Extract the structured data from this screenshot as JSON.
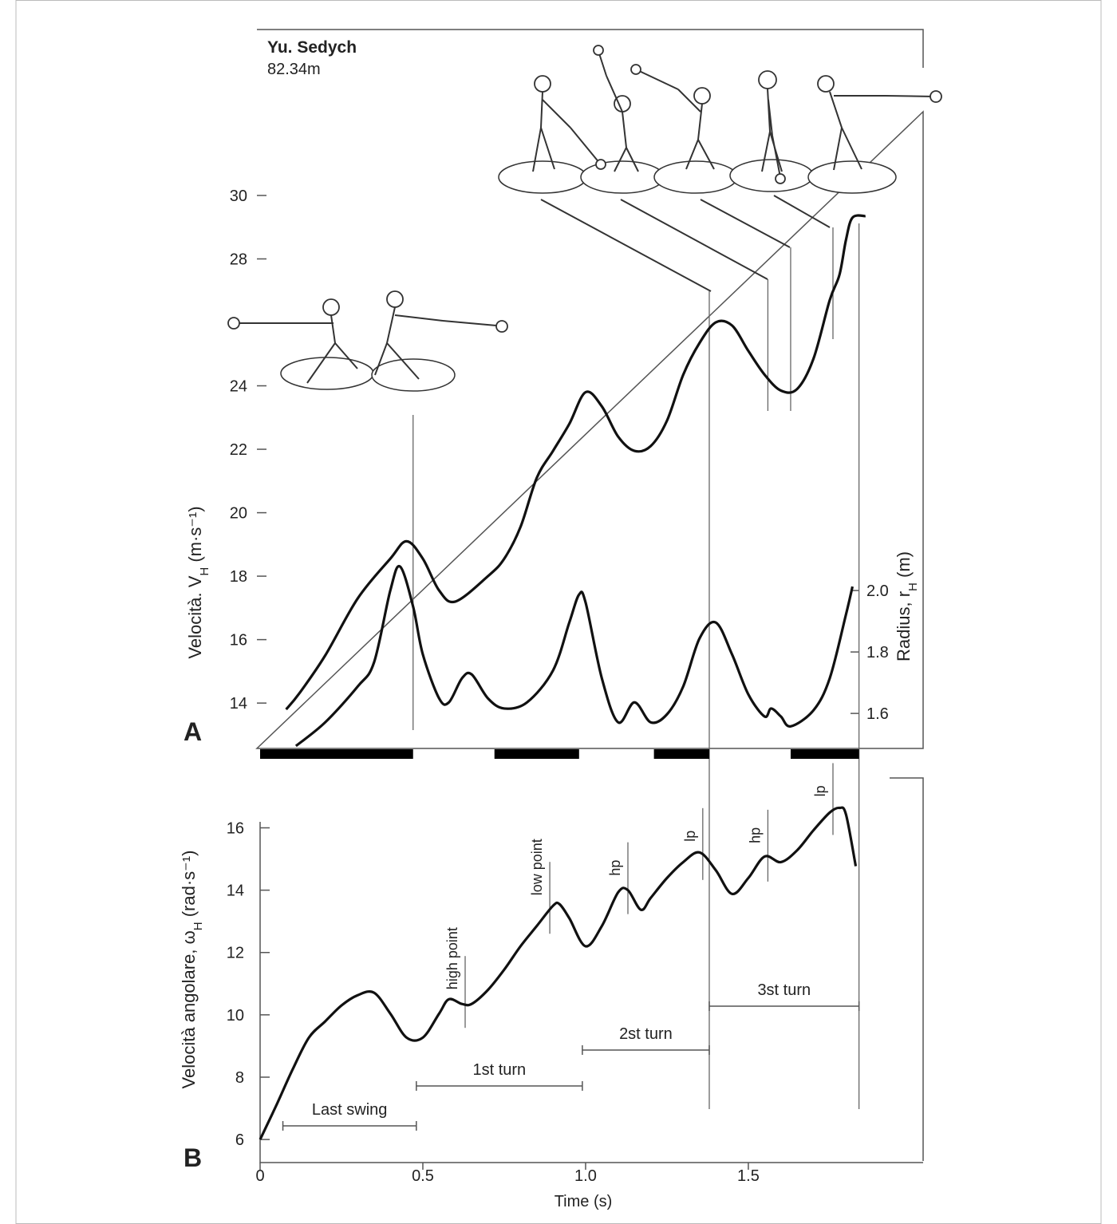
{
  "chart_data": [
    {
      "type": "line",
      "label": "A",
      "title": "Yu. Sedych",
      "subtitle": "82.34m",
      "ylabel": {
        "text": "Velocità. V",
        "sub": "H",
        "unit": " (m·s⁻¹)"
      },
      "y2label": {
        "text": "Radius, r",
        "sub": "H",
        "unit": " (m)"
      },
      "xlim": [
        0,
        2.037
      ],
      "ylim": [
        12.57,
        35.23
      ],
      "yticks": [
        14,
        16,
        18,
        20,
        22,
        24,
        28,
        30
      ],
      "y2lim": [
        1.486,
        3.826
      ],
      "y2ticks": [
        1.6,
        1.8,
        {
          "value": 2.0,
          "label": "2.0"
        }
      ],
      "series": [
        {
          "color": "#111",
          "x": [
            0.08,
            0.12,
            0.2,
            0.3,
            0.4,
            0.45,
            0.5,
            0.55,
            0.6,
            0.7,
            0.75,
            0.8,
            0.85,
            0.9,
            0.95,
            1.0,
            1.05,
            1.1,
            1.15,
            1.2,
            1.25,
            1.3,
            1.35,
            1.4,
            1.45,
            1.5,
            1.55,
            1.6,
            1.65,
            1.7,
            1.75,
            1.78,
            1.8,
            1.82,
            1.86
          ],
          "values": [
            13.8,
            14.3,
            15.5,
            17.3,
            18.55,
            19.1,
            18.55,
            17.55,
            17.2,
            18.0,
            18.55,
            19.55,
            21.1,
            21.95,
            22.8,
            23.8,
            23.35,
            22.4,
            21.95,
            22.1,
            22.9,
            24.35,
            25.35,
            26.0,
            25.9,
            25.1,
            24.35,
            23.85,
            23.9,
            24.85,
            26.7,
            27.5,
            28.6,
            29.3,
            29.35
          ]
        },
        {
          "color": "#111",
          "axis": "y2",
          "x": [
            0.11,
            0.2,
            0.3,
            0.35,
            0.4,
            0.43,
            0.47,
            0.5,
            0.55,
            0.58,
            0.62,
            0.65,
            0.7,
            0.75,
            0.82,
            0.9,
            0.95,
            0.98,
            1.0,
            1.05,
            1.1,
            1.15,
            1.2,
            1.25,
            1.3,
            1.35,
            1.4,
            1.45,
            1.5,
            1.55,
            1.57,
            1.6,
            1.63,
            1.7,
            1.75,
            1.8,
            1.82
          ],
          "values": [
            1.494,
            1.571,
            1.688,
            1.766,
            2.0,
            2.078,
            1.948,
            1.792,
            1.649,
            1.636,
            1.714,
            1.727,
            1.649,
            1.616,
            1.636,
            1.74,
            1.896,
            1.987,
            1.961,
            1.714,
            1.571,
            1.636,
            1.571,
            1.597,
            1.688,
            1.844,
            1.896,
            1.792,
            1.662,
            1.59,
            1.616,
            1.59,
            1.558,
            1.61,
            1.714,
            1.922,
            2.013
          ]
        }
      ],
      "event_lines": [
        0.47,
        1.38,
        1.56,
        1.63,
        1.76,
        1.84
      ],
      "support_phases": [
        [
          0,
          0.47
        ],
        [
          0.72,
          0.98
        ],
        [
          1.21,
          1.38
        ],
        [
          1.63,
          1.84
        ]
      ]
    },
    {
      "type": "line",
      "label": "B",
      "ylabel": {
        "text": "Velocità angolare, ω",
        "sub": "H",
        "unit": " (rad·s⁻¹)"
      },
      "xlabel": "Time (s)",
      "xlim": [
        0,
        2.037
      ],
      "xticks": [
        0,
        0.5,
        {
          "value": 1.0,
          "label": "1.0"
        },
        1.5
      ],
      "ylim": [
        5.26,
        17.6
      ],
      "yticks": [
        6,
        8,
        10,
        12,
        14,
        16
      ],
      "series": [
        {
          "color": "#111",
          "x": [
            0.0,
            0.05,
            0.1,
            0.15,
            0.2,
            0.25,
            0.3,
            0.35,
            0.4,
            0.45,
            0.5,
            0.55,
            0.58,
            0.62,
            0.65,
            0.7,
            0.75,
            0.8,
            0.85,
            0.9,
            0.92,
            0.95,
            1.0,
            1.05,
            1.1,
            1.13,
            1.17,
            1.2,
            1.25,
            1.3,
            1.35,
            1.4,
            1.45,
            1.5,
            1.55,
            1.6,
            1.65,
            1.7,
            1.75,
            1.78,
            1.8,
            1.83
          ],
          "values": [
            6.0,
            7.1,
            8.25,
            9.27,
            9.79,
            10.3,
            10.63,
            10.71,
            10.04,
            9.27,
            9.27,
            10.04,
            10.5,
            10.35,
            10.35,
            10.8,
            11.45,
            12.2,
            12.85,
            13.5,
            13.55,
            13.1,
            12.2,
            12.85,
            13.93,
            14.0,
            13.37,
            13.75,
            14.39,
            14.9,
            15.21,
            14.64,
            13.88,
            14.39,
            15.08,
            14.9,
            15.28,
            15.92,
            16.49,
            16.64,
            16.43,
            14.77
          ]
        }
      ],
      "annotations": [
        {
          "text": "high point",
          "x": 0.63
        },
        {
          "text": "low point",
          "x": 0.89
        },
        {
          "text": "hp",
          "x": 1.13
        },
        {
          "text": "lp",
          "x": 1.36
        },
        {
          "text": "hp",
          "x": 1.56
        },
        {
          "text": "lp",
          "x": 1.76
        }
      ],
      "phases": [
        {
          "text": "Last swing",
          "start": 0.07,
          "end": 0.48
        },
        {
          "text": "1st turn",
          "start": 0.48,
          "end": 0.99
        },
        {
          "text": "2st turn",
          "start": 0.99,
          "end": 1.38
        },
        {
          "text": "3st turn",
          "start": 1.38,
          "end": 1.84
        }
      ]
    }
  ]
}
